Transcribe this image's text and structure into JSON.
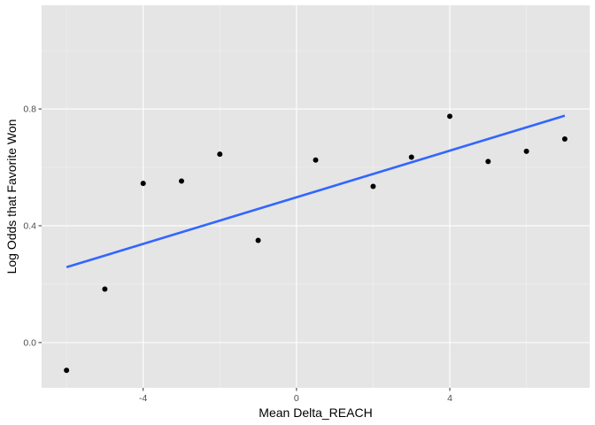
{
  "chart_data": {
    "type": "scatter",
    "title": "",
    "xlabel": "Mean Delta_REACH",
    "ylabel": "Log Odds that Favorite Won",
    "xlim": [
      -6.65,
      7.65
    ],
    "ylim": [
      -0.155,
      1.155
    ],
    "x_ticks": [
      -4,
      0,
      4
    ],
    "x_tick_labels": [
      "-4",
      "0",
      "4"
    ],
    "y_ticks": [
      0.0,
      0.4,
      0.8
    ],
    "y_tick_labels": [
      "0.0",
      "0.4",
      "0.8"
    ],
    "grid": true,
    "points": [
      {
        "x": -6,
        "y": -0.095
      },
      {
        "x": -5,
        "y": 0.183
      },
      {
        "x": -4,
        "y": 0.545
      },
      {
        "x": -3,
        "y": 0.553
      },
      {
        "x": -2,
        "y": 0.645
      },
      {
        "x": -1,
        "y": 0.35
      },
      {
        "x": 0.5,
        "y": 0.625
      },
      {
        "x": 2,
        "y": 0.535
      },
      {
        "x": 3,
        "y": 0.635
      },
      {
        "x": 4,
        "y": 0.775
      },
      {
        "x": 5,
        "y": 0.62
      },
      {
        "x": 6,
        "y": 0.655
      },
      {
        "x": 7,
        "y": 0.697
      }
    ],
    "fit_line": {
      "method": "linear",
      "start": {
        "x": -6,
        "y": 0.258
      },
      "end": {
        "x": 7,
        "y": 0.777
      }
    },
    "colors": {
      "panel": "#e5e5e5",
      "grid_major": "#ffffff",
      "grid_minor": "#f2f2f2",
      "point": "#000000",
      "fit_line": "#3366ff"
    }
  }
}
